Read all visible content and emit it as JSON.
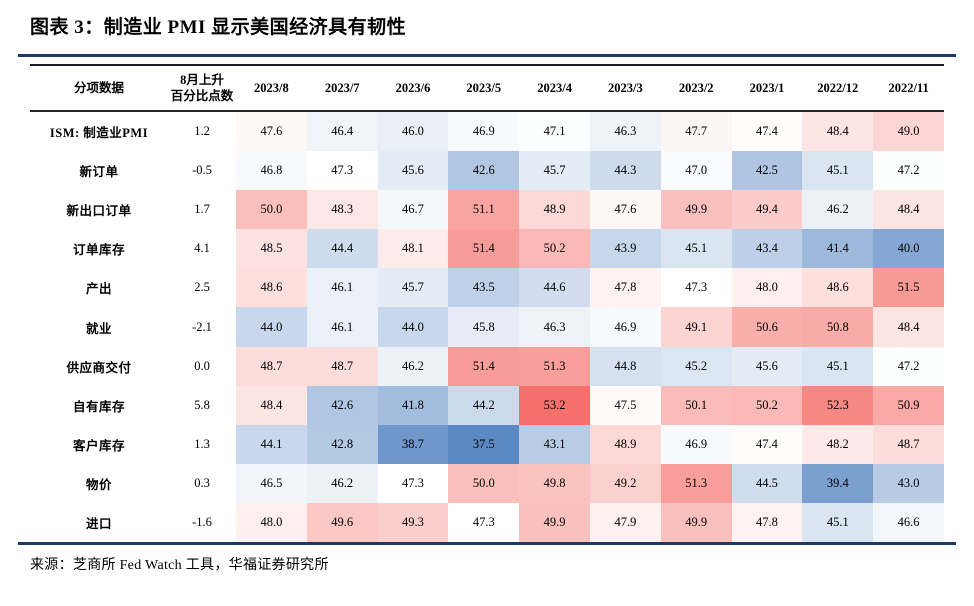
{
  "header": {
    "title": "图表 3：制造业 PMI 显示美国经济具有韧性"
  },
  "footer": {
    "source": "来源：芝商所 Fed Watch 工具，华福证券研究所"
  },
  "colors": {
    "rule": "#1f3864",
    "table_border": "#1c1c2c",
    "heat_low": "#5b89c4",
    "heat_mid": "#ffffff",
    "heat_high": "#f4716b"
  },
  "chart_data": {
    "type": "heatmap",
    "title": "制造业 PMI 显示美国经济具有韧性",
    "columns": [
      "分项数据",
      "8月上升\n百分比点数",
      "2023/8",
      "2023/7",
      "2023/6",
      "2023/5",
      "2023/4",
      "2023/3",
      "2023/2",
      "2023/1",
      "2022/12",
      "2022/11"
    ],
    "rows": [
      {
        "label": "ISM: 制造业PMI",
        "change": "1.2",
        "values": [
          47.6,
          46.4,
          46.0,
          46.9,
          47.1,
          46.3,
          47.7,
          47.4,
          48.4,
          49.0
        ]
      },
      {
        "label": "新订单",
        "change": "-0.5",
        "values": [
          46.8,
          47.3,
          45.6,
          42.6,
          45.7,
          44.3,
          47.0,
          42.5,
          45.1,
          47.2
        ]
      },
      {
        "label": "新出口订单",
        "change": "1.7",
        "values": [
          50.0,
          48.3,
          46.7,
          51.1,
          48.9,
          47.6,
          49.9,
          49.4,
          46.2,
          48.4
        ]
      },
      {
        "label": "订单库存",
        "change": "4.1",
        "values": [
          48.5,
          44.4,
          48.1,
          51.4,
          50.2,
          43.9,
          45.1,
          43.4,
          41.4,
          40.0
        ]
      },
      {
        "label": "产出",
        "change": "2.5",
        "values": [
          48.6,
          46.1,
          45.7,
          43.5,
          44.6,
          47.8,
          47.3,
          48.0,
          48.6,
          51.5
        ]
      },
      {
        "label": "就业",
        "change": "-2.1",
        "values": [
          44.0,
          46.1,
          44.0,
          45.8,
          46.3,
          46.9,
          49.1,
          50.6,
          50.8,
          48.4
        ]
      },
      {
        "label": "供应商交付",
        "change": "0.0",
        "values": [
          48.7,
          48.7,
          46.2,
          51.4,
          51.3,
          44.8,
          45.2,
          45.6,
          45.1,
          47.2
        ]
      },
      {
        "label": "自有库存",
        "change": "5.8",
        "values": [
          48.4,
          42.6,
          41.8,
          44.2,
          53.2,
          47.5,
          50.1,
          50.2,
          52.3,
          50.9
        ]
      },
      {
        "label": "客户库存",
        "change": "1.3",
        "values": [
          44.1,
          42.8,
          38.7,
          37.5,
          43.1,
          48.9,
          46.9,
          47.4,
          48.2,
          48.7
        ]
      },
      {
        "label": "物价",
        "change": "0.3",
        "values": [
          46.5,
          46.2,
          47.3,
          50.0,
          49.8,
          49.2,
          51.3,
          44.5,
          39.4,
          43.0
        ]
      },
      {
        "label": "进口",
        "change": "-1.6",
        "values": [
          48.0,
          49.6,
          49.3,
          47.3,
          49.9,
          47.9,
          49.9,
          47.8,
          45.1,
          46.6
        ]
      }
    ],
    "color_scale": {
      "min": 37.5,
      "mid": 47.3,
      "max": 53.2,
      "min_color": "#5b89c4",
      "mid_color": "#ffffff",
      "max_color": "#f4716b"
    },
    "legend": "row cells shaded blue (low) → white → red (high)"
  }
}
